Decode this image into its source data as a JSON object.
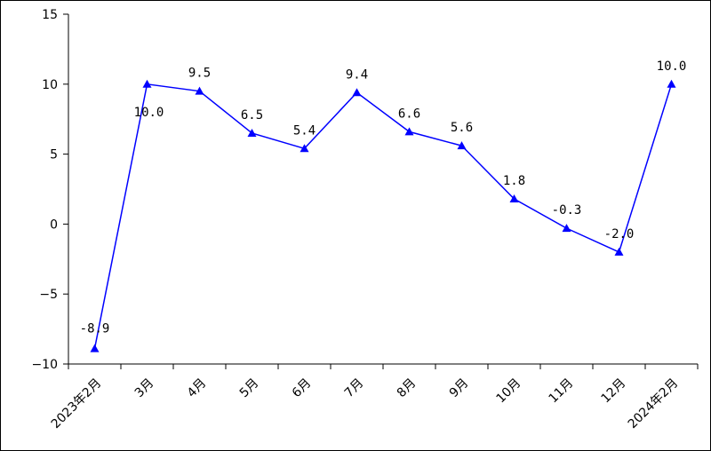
{
  "chart_data": {
    "type": "line",
    "categories": [
      "2023年2月",
      "3月",
      "4月",
      "5月",
      "6月",
      "7月",
      "8月",
      "9月",
      "10月",
      "11月",
      "12月",
      "2024年2月"
    ],
    "series": [
      {
        "values": [
          -8.9,
          10.0,
          9.5,
          6.5,
          5.4,
          9.4,
          6.6,
          5.6,
          1.8,
          -0.3,
          -2.0,
          10.0
        ],
        "data_labels": [
          "-8.9",
          "10.0",
          "9.5",
          "6.5",
          "5.4",
          "9.4",
          "6.6",
          "5.6",
          "1.8",
          "-0.3",
          "-2.0",
          "10.0"
        ],
        "color": "#0000ff",
        "marker": "triangle"
      }
    ],
    "ylim": [
      -10,
      15
    ],
    "y_ticks": [
      "15",
      "10",
      "5",
      "0",
      "−5",
      "−10"
    ],
    "y_tick_values": [
      15,
      10,
      5,
      0,
      -5,
      -10
    ],
    "grid": false,
    "legend": "none"
  }
}
